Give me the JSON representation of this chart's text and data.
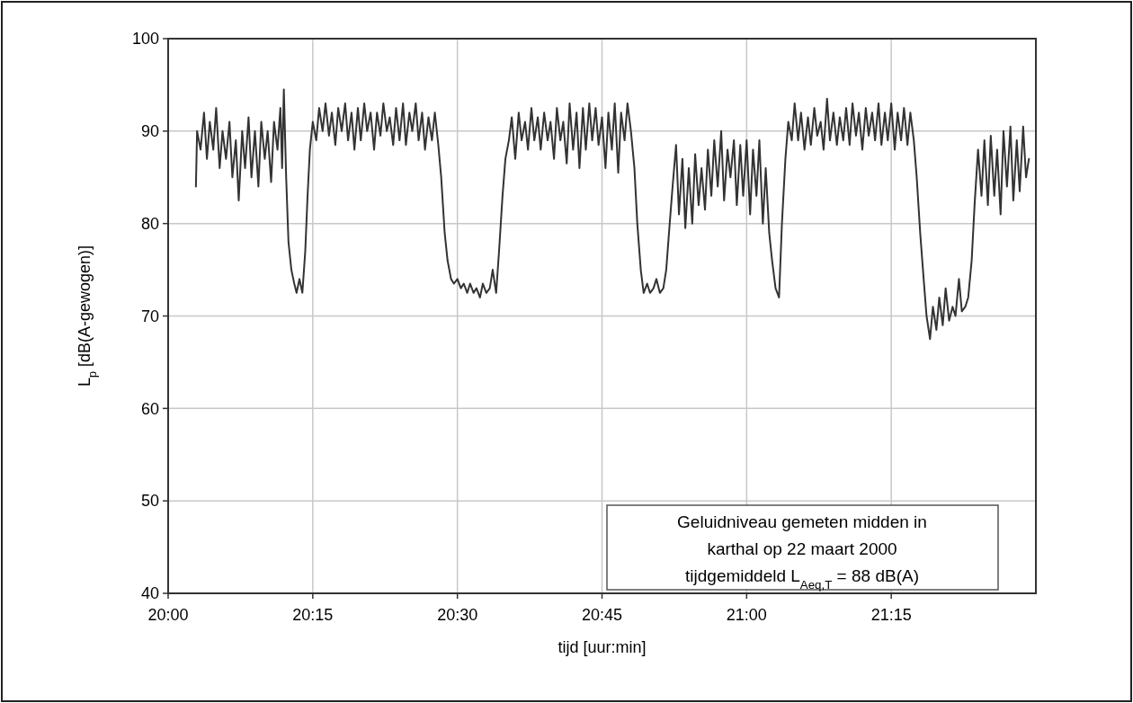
{
  "chart_data": {
    "type": "line",
    "xlabel": "tijd [uur:min]",
    "ylabel": "L$_{p}$ [dB(A-gewogen)]",
    "xlim": [
      20,
      21.5
    ],
    "xticks": [
      {
        "value": 20,
        "label": "20:00"
      },
      {
        "value": 20.25,
        "label": "20:15"
      },
      {
        "value": 20.5,
        "label": "20:30"
      },
      {
        "value": 20.75,
        "label": "20:45"
      },
      {
        "value": 21,
        "label": "21:00"
      },
      {
        "value": 21.25,
        "label": "21:15"
      }
    ],
    "ylim": [
      40,
      100
    ],
    "yticks": [
      40,
      50,
      60,
      70,
      80,
      90,
      100
    ],
    "grid": true,
    "marker": "none",
    "line_style": "solid",
    "annotations": [
      "Geluidniveau gemeten midden in",
      "karthal op 22 maart 2000",
      "tijdgemiddeld L$_{Aeq,T}$ = 88 dB(A)"
    ],
    "series": [
      {
        "color": "#333333",
        "x": [
          20.048,
          20.05,
          20.056,
          20.062,
          20.067,
          20.072,
          20.078,
          20.083,
          20.089,
          20.094,
          20.1,
          20.106,
          20.111,
          20.117,
          20.122,
          20.128,
          20.133,
          20.139,
          20.144,
          20.15,
          20.156,
          20.161,
          20.167,
          20.172,
          20.178,
          20.183,
          20.189,
          20.194,
          20.197,
          20.2,
          20.204,
          20.208,
          20.213,
          20.218,
          20.222,
          20.227,
          20.232,
          20.237,
          20.241,
          20.245,
          20.25,
          20.256,
          20.261,
          20.267,
          20.272,
          20.278,
          20.283,
          20.289,
          20.294,
          20.3,
          20.306,
          20.311,
          20.317,
          20.322,
          20.328,
          20.333,
          20.339,
          20.344,
          20.35,
          20.356,
          20.361,
          20.367,
          20.372,
          20.378,
          20.383,
          20.389,
          20.394,
          20.4,
          20.406,
          20.411,
          20.417,
          20.422,
          20.428,
          20.433,
          20.439,
          20.444,
          20.45,
          20.456,
          20.461,
          20.467,
          20.472,
          20.478,
          20.483,
          20.489,
          20.494,
          20.5,
          20.506,
          20.511,
          20.517,
          20.522,
          20.528,
          20.533,
          20.539,
          20.544,
          20.55,
          20.556,
          20.561,
          20.567,
          20.572,
          20.578,
          20.583,
          20.589,
          20.594,
          20.6,
          20.606,
          20.611,
          20.617,
          20.622,
          20.628,
          20.633,
          20.639,
          20.644,
          20.65,
          20.656,
          20.661,
          20.667,
          20.672,
          20.678,
          20.683,
          20.689,
          20.694,
          20.7,
          20.706,
          20.711,
          20.717,
          20.722,
          20.728,
          20.733,
          20.739,
          20.744,
          20.75,
          20.756,
          20.761,
          20.767,
          20.772,
          20.778,
          20.783,
          20.789,
          20.794,
          20.8,
          20.806,
          20.811,
          20.817,
          20.822,
          20.828,
          20.833,
          20.839,
          20.844,
          20.85,
          20.856,
          20.861,
          20.867,
          20.872,
          20.878,
          20.883,
          20.889,
          20.894,
          20.9,
          20.906,
          20.911,
          20.917,
          20.922,
          20.928,
          20.933,
          20.939,
          20.944,
          20.95,
          20.956,
          20.961,
          20.967,
          20.972,
          20.978,
          20.983,
          20.989,
          20.994,
          21,
          21.006,
          21.011,
          21.017,
          21.022,
          21.028,
          21.033,
          21.039,
          21.044,
          21.05,
          21.056,
          21.061,
          21.067,
          21.072,
          21.078,
          21.083,
          21.089,
          21.094,
          21.1,
          21.106,
          21.111,
          21.117,
          21.122,
          21.128,
          21.133,
          21.139,
          21.144,
          21.15,
          21.156,
          21.161,
          21.167,
          21.172,
          21.178,
          21.183,
          21.189,
          21.194,
          21.2,
          21.206,
          21.211,
          21.217,
          21.222,
          21.228,
          21.233,
          21.239,
          21.244,
          21.25,
          21.256,
          21.261,
          21.267,
          21.272,
          21.278,
          21.283,
          21.289,
          21.294,
          21.3,
          21.306,
          21.311,
          21.317,
          21.322,
          21.328,
          21.333,
          21.339,
          21.344,
          21.35,
          21.356,
          21.361,
          21.367,
          21.372,
          21.378,
          21.383,
          21.389,
          21.394,
          21.4,
          21.406,
          21.411,
          21.417,
          21.422,
          21.428,
          21.433,
          21.439,
          21.444,
          21.45,
          21.456,
          21.461,
          21.467,
          21.472,
          21.478,
          21.483,
          21.488
        ],
        "values": [
          84,
          90,
          88,
          92,
          87,
          91,
          88,
          92.5,
          86,
          90,
          87,
          91,
          85,
          89,
          82.5,
          90,
          86,
          91.5,
          85,
          90,
          84,
          91,
          87,
          90,
          84.5,
          91,
          88,
          92.5,
          86,
          94.5,
          85,
          78,
          75,
          73.5,
          72.5,
          74,
          72.5,
          77,
          83,
          88,
          91,
          89,
          92.5,
          90,
          93,
          89.5,
          92,
          88.5,
          92.5,
          90,
          93,
          89,
          92,
          88,
          92.5,
          89,
          93,
          90,
          92,
          88,
          92,
          89.5,
          93,
          90,
          91.5,
          88.5,
          92.5,
          89,
          93,
          88.5,
          92,
          90,
          93,
          89,
          92,
          88,
          91.5,
          89,
          92,
          88.5,
          85,
          79,
          76,
          74,
          73.5,
          74,
          73,
          73.5,
          72.5,
          73.5,
          72.5,
          73,
          72,
          73.5,
          72.5,
          73,
          75,
          72.5,
          77,
          83,
          87,
          89,
          91.5,
          87,
          92,
          89,
          91,
          88,
          92.5,
          89,
          91.5,
          88,
          92,
          89,
          91,
          87,
          92.5,
          89,
          91,
          86.5,
          93,
          88,
          92,
          86,
          92.5,
          88,
          93,
          89,
          92.5,
          88.5,
          91.5,
          86,
          92,
          88,
          93,
          85.5,
          92,
          89,
          93,
          90,
          86,
          80,
          75,
          72.5,
          73.5,
          72.5,
          73,
          74,
          72.5,
          73,
          75,
          80,
          84,
          88.5,
          81,
          87,
          79.5,
          86,
          80,
          87.5,
          82,
          86,
          81.5,
          88,
          83,
          89,
          84,
          90,
          82.5,
          88,
          85,
          89,
          82,
          88.5,
          83,
          89,
          81,
          88,
          83,
          89,
          80,
          86,
          79,
          76,
          73,
          72,
          80,
          87,
          91,
          89,
          93,
          89,
          92,
          88,
          91.5,
          88.5,
          92.5,
          89.5,
          91,
          88,
          93.5,
          89,
          92,
          88.5,
          91.5,
          89,
          92.5,
          88.5,
          93,
          89.5,
          92,
          88,
          92.5,
          89.5,
          92,
          89,
          93,
          88.5,
          92,
          89,
          93,
          88,
          92,
          89,
          92.5,
          88.5,
          92,
          89,
          85,
          79,
          74,
          70,
          67.5,
          71,
          68.5,
          72,
          69,
          73,
          69.5,
          71,
          70,
          74,
          70.5,
          71,
          72,
          76,
          82,
          88,
          83,
          89,
          82,
          89.5,
          83,
          88,
          81,
          90,
          84,
          90.5,
          82.5,
          89,
          83.5,
          90.5,
          85,
          87
        ]
      }
    ]
  }
}
